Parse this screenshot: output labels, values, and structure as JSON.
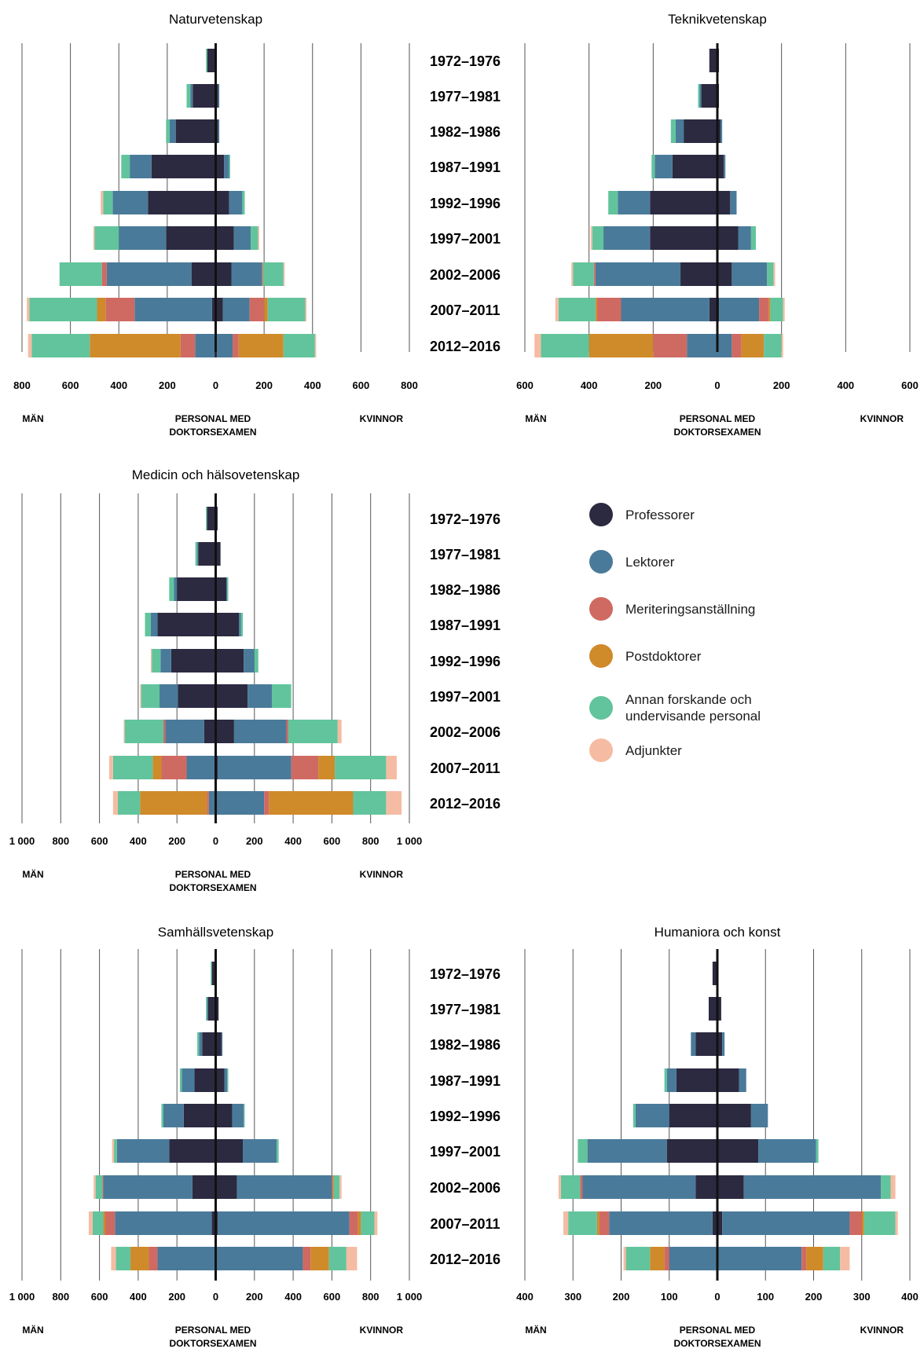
{
  "cohorts": [
    "1972–1976",
    "1977–1981",
    "1982–1986",
    "1987–1991",
    "1992–1996",
    "1997–2001",
    "2002–2006",
    "2007–2011",
    "2012–2016"
  ],
  "label_men": "MÄN",
  "label_women": "KVINNOR",
  "label_center": "PERSONAL MED\nDOKTORSEXAMEN",
  "category_order": [
    "Professorer",
    "Lektorer",
    "Meriteringsanställning",
    "Postdoktorer",
    "Annan forskande och undervisande personal",
    "Adjunkter"
  ],
  "colors": {
    "Professorer": "#2c2a40",
    "Lektorer": "#4a7a9a",
    "Meriteringsanställning": "#cf6a63",
    "Postdoktorer": "#cf8a2a",
    "Annan forskande och undervisande personal": "#62c49c",
    "Adjunkter": "#f5bca3",
    "axis": "#111111",
    "grid": "#555555"
  },
  "legend": [
    {
      "label": "Professorer",
      "color": "#2c2a40",
      "icon": "circle"
    },
    {
      "label": "Lektorer",
      "color": "#4a7a9a",
      "icon": "circle"
    },
    {
      "label": "Meriteringsanställning",
      "color": "#cf6a63",
      "icon": "circle"
    },
    {
      "label": "Postdoktorer",
      "color": "#cf8a2a",
      "icon": "circle"
    },
    {
      "label": "Annan forskande och\nundervisande personal",
      "color": "#62c49c",
      "icon": "circle"
    },
    {
      "label": "Adjunkter",
      "color": "#f5bca3",
      "icon": "circle"
    }
  ],
  "chart_data": [
    {
      "type": "bar",
      "title": "Naturvetenskap",
      "orientation": "horizontal-population-pyramid",
      "categories": [
        "1972–1976",
        "1977–1981",
        "1982–1986",
        "1987–1991",
        "1992–1996",
        "1997–2001",
        "2002–2006",
        "2007–2011",
        "2012–2016"
      ],
      "xlim": [
        -800,
        800
      ],
      "xticks": [
        -800,
        -600,
        -400,
        -200,
        0,
        200,
        400,
        600,
        800
      ],
      "tick_labels": [
        "800",
        "600",
        "400",
        "200",
        "0",
        "200",
        "400",
        "600",
        "800"
      ],
      "grid": true,
      "series": [
        {
          "name": "Professorer",
          "men": [
            35,
            95,
            165,
            265,
            280,
            205,
            100,
            15,
            5
          ],
          "women": [
            5,
            10,
            10,
            35,
            55,
            75,
            65,
            30,
            5
          ]
        },
        {
          "name": "Lektorer",
          "men": [
            0,
            10,
            25,
            90,
            145,
            195,
            350,
            320,
            80
          ],
          "women": [
            0,
            5,
            5,
            20,
            55,
            70,
            125,
            110,
            65
          ]
        },
        {
          "name": "Meriteringsanställning",
          "men": [
            0,
            0,
            0,
            0,
            0,
            0,
            20,
            120,
            60
          ],
          "women": [
            0,
            0,
            0,
            0,
            0,
            0,
            5,
            60,
            25
          ]
        },
        {
          "name": "Postdoktorer",
          "men": [
            0,
            0,
            0,
            0,
            0,
            0,
            0,
            35,
            375
          ],
          "women": [
            0,
            0,
            0,
            0,
            0,
            0,
            0,
            15,
            185
          ]
        },
        {
          "name": "Annan forskande och undervisande personal",
          "men": [
            5,
            15,
            15,
            35,
            40,
            100,
            175,
            280,
            240
          ],
          "women": [
            0,
            0,
            0,
            5,
            10,
            30,
            85,
            155,
            130
          ]
        },
        {
          "name": "Adjunkter",
          "men": [
            0,
            0,
            0,
            0,
            10,
            5,
            0,
            10,
            15
          ],
          "women": [
            0,
            0,
            0,
            0,
            0,
            5,
            5,
            5,
            5
          ]
        }
      ]
    },
    {
      "type": "bar",
      "title": "Teknikvetenskap",
      "orientation": "horizontal-population-pyramid",
      "categories": [
        "1972–1976",
        "1977–1981",
        "1982–1986",
        "1987–1991",
        "1992–1996",
        "1997–2001",
        "2002–2006",
        "2007–2011",
        "2012–2016"
      ],
      "xlim": [
        -600,
        600
      ],
      "xticks": [
        -600,
        -400,
        -200,
        0,
        200,
        400,
        600
      ],
      "tick_labels": [
        "600",
        "400",
        "200",
        "0",
        "200",
        "400",
        "600"
      ],
      "grid": true,
      "series": [
        {
          "name": "Professorer",
          "men": [
            25,
            50,
            105,
            140,
            210,
            210,
            115,
            25,
            0
          ],
          "women": [
            5,
            5,
            10,
            20,
            40,
            65,
            45,
            5,
            0
          ]
        },
        {
          "name": "Lektorer",
          "men": [
            0,
            5,
            25,
            55,
            100,
            145,
            265,
            275,
            95
          ],
          "women": [
            0,
            0,
            5,
            5,
            20,
            40,
            110,
            125,
            45
          ]
        },
        {
          "name": "Meriteringsanställning",
          "men": [
            0,
            0,
            0,
            0,
            0,
            0,
            5,
            75,
            105
          ],
          "women": [
            0,
            0,
            0,
            0,
            0,
            0,
            0,
            30,
            30
          ]
        },
        {
          "name": "Postdoktorer",
          "men": [
            0,
            0,
            0,
            0,
            0,
            0,
            0,
            5,
            200
          ],
          "women": [
            0,
            0,
            0,
            0,
            0,
            0,
            0,
            5,
            70
          ]
        },
        {
          "name": "Annan forskande och undervisande personal",
          "men": [
            0,
            5,
            15,
            10,
            30,
            35,
            65,
            115,
            150
          ],
          "women": [
            0,
            0,
            0,
            0,
            0,
            15,
            20,
            40,
            55
          ]
        },
        {
          "name": "Adjunkter",
          "men": [
            0,
            0,
            0,
            0,
            0,
            5,
            5,
            10,
            20
          ],
          "women": [
            0,
            0,
            0,
            0,
            0,
            0,
            5,
            5,
            5
          ]
        }
      ]
    },
    {
      "type": "bar",
      "title": "Medicin och hälsovetenskap",
      "orientation": "horizontal-population-pyramid",
      "categories": [
        "1972–1976",
        "1977–1981",
        "1982–1986",
        "1987–1991",
        "1992–1996",
        "1997–2001",
        "2002–2006",
        "2007–2011",
        "2012–2016"
      ],
      "xlim": [
        -1000,
        1000
      ],
      "xticks": [
        -1000,
        -800,
        -600,
        -400,
        -200,
        0,
        200,
        400,
        600,
        800,
        1000
      ],
      "tick_labels": [
        "1 000",
        "800",
        "600",
        "400",
        "200",
        "0",
        "200",
        "400",
        "600",
        "800",
        "1 000"
      ],
      "grid": true,
      "series": [
        {
          "name": "Professorer",
          "men": [
            45,
            90,
            200,
            300,
            230,
            195,
            60,
            5,
            0
          ],
          "women": [
            10,
            25,
            55,
            120,
            145,
            165,
            95,
            10,
            0
          ]
        },
        {
          "name": "Lektorer",
          "men": [
            0,
            5,
            15,
            35,
            55,
            95,
            200,
            145,
            35
          ],
          "women": [
            0,
            0,
            5,
            10,
            55,
            125,
            270,
            380,
            250
          ]
        },
        {
          "name": "Meriteringsanställning",
          "men": [
            0,
            0,
            0,
            0,
            0,
            0,
            10,
            130,
            10
          ],
          "women": [
            0,
            0,
            0,
            0,
            0,
            0,
            10,
            140,
            25
          ]
        },
        {
          "name": "Postdoktorer",
          "men": [
            0,
            0,
            0,
            0,
            0,
            0,
            0,
            45,
            345
          ],
          "women": [
            0,
            0,
            0,
            0,
            0,
            0,
            0,
            85,
            435
          ]
        },
        {
          "name": "Annan forskande och undervisande personal",
          "men": [
            5,
            10,
            25,
            30,
            45,
            95,
            200,
            205,
            115
          ],
          "women": [
            0,
            0,
            5,
            10,
            20,
            100,
            255,
            265,
            170
          ]
        },
        {
          "name": "Adjunkter",
          "men": [
            0,
            0,
            0,
            0,
            5,
            5,
            5,
            20,
            25
          ],
          "women": [
            0,
            0,
            0,
            0,
            0,
            0,
            20,
            55,
            80
          ]
        }
      ]
    },
    {
      "type": "bar",
      "title": "Samhällsvetenskap",
      "orientation": "horizontal-population-pyramid",
      "categories": [
        "1972–1976",
        "1977–1981",
        "1982–1986",
        "1987–1991",
        "1992–1996",
        "1997–2001",
        "2002–2006",
        "2007–2011",
        "2012–2016"
      ],
      "xlim": [
        -1000,
        1000
      ],
      "xticks": [
        -1000,
        -800,
        -600,
        -400,
        -200,
        0,
        200,
        400,
        600,
        800,
        1000
      ],
      "tick_labels": [
        "1 000",
        "800",
        "600",
        "400",
        "200",
        "0",
        "200",
        "400",
        "600",
        "800",
        "1 000"
      ],
      "grid": true,
      "series": [
        {
          "name": "Professorer",
          "men": [
            20,
            40,
            70,
            110,
            165,
            240,
            120,
            20,
            0
          ],
          "women": [
            5,
            15,
            30,
            45,
            85,
            140,
            110,
            10,
            0
          ]
        },
        {
          "name": "Lektorer",
          "men": [
            0,
            5,
            15,
            65,
            105,
            270,
            460,
            500,
            300
          ],
          "women": [
            0,
            0,
            5,
            15,
            60,
            175,
            490,
            680,
            450
          ]
        },
        {
          "name": "Meriteringsanställning",
          "men": [
            0,
            0,
            0,
            0,
            0,
            0,
            5,
            50,
            45
          ],
          "women": [
            0,
            0,
            0,
            0,
            0,
            0,
            5,
            45,
            40
          ]
        },
        {
          "name": "Postdoktorer",
          "men": [
            0,
            0,
            0,
            0,
            0,
            0,
            0,
            10,
            95
          ],
          "women": [
            0,
            0,
            0,
            0,
            0,
            0,
            5,
            15,
            95
          ]
        },
        {
          "name": "Annan forskande och undervisande personal",
          "men": [
            5,
            5,
            10,
            10,
            10,
            15,
            35,
            55,
            75
          ],
          "women": [
            0,
            0,
            0,
            5,
            5,
            10,
            30,
            70,
            90
          ]
        },
        {
          "name": "Adjunkter",
          "men": [
            0,
            0,
            0,
            0,
            0,
            10,
            10,
            20,
            25
          ],
          "women": [
            0,
            0,
            0,
            0,
            0,
            0,
            10,
            15,
            55
          ]
        }
      ]
    },
    {
      "type": "bar",
      "title": "Humaniora och konst",
      "orientation": "horizontal-population-pyramid",
      "categories": [
        "1972–1976",
        "1977–1981",
        "1982–1986",
        "1987–1991",
        "1992–1996",
        "1997–2001",
        "2002–2006",
        "2007–2011",
        "2012–2016"
      ],
      "xlim": [
        -400,
        400
      ],
      "xticks": [
        -400,
        -300,
        -200,
        -100,
        0,
        100,
        200,
        300,
        400
      ],
      "tick_labels": [
        "400",
        "300",
        "200",
        "100",
        "0",
        "100",
        "200",
        "300",
        "400"
      ],
      "grid": true,
      "series": [
        {
          "name": "Professorer",
          "men": [
            10,
            18,
            45,
            85,
            100,
            105,
            45,
            10,
            0
          ],
          "women": [
            2,
            8,
            10,
            45,
            70,
            85,
            55,
            10,
            0
          ]
        },
        {
          "name": "Lektorer",
          "men": [
            0,
            0,
            10,
            20,
            70,
            165,
            235,
            215,
            100
          ],
          "women": [
            0,
            0,
            5,
            15,
            35,
            120,
            285,
            265,
            175
          ]
        },
        {
          "name": "Meriteringsanställning",
          "men": [
            0,
            0,
            0,
            0,
            0,
            0,
            5,
            20,
            10
          ],
          "women": [
            0,
            0,
            0,
            0,
            0,
            0,
            0,
            25,
            10
          ]
        },
        {
          "name": "Postdoktorer",
          "men": [
            0,
            0,
            0,
            0,
            0,
            0,
            0,
            5,
            30
          ],
          "women": [
            0,
            0,
            0,
            0,
            0,
            0,
            0,
            5,
            35
          ]
        },
        {
          "name": "Annan forskande och undervisande personal",
          "men": [
            0,
            0,
            0,
            5,
            5,
            20,
            40,
            60,
            50
          ],
          "women": [
            0,
            0,
            0,
            0,
            0,
            5,
            20,
            65,
            35
          ]
        },
        {
          "name": "Adjunkter",
          "men": [
            0,
            0,
            0,
            0,
            0,
            0,
            5,
            10,
            5
          ],
          "women": [
            0,
            0,
            0,
            0,
            0,
            0,
            10,
            5,
            20
          ]
        }
      ]
    }
  ]
}
